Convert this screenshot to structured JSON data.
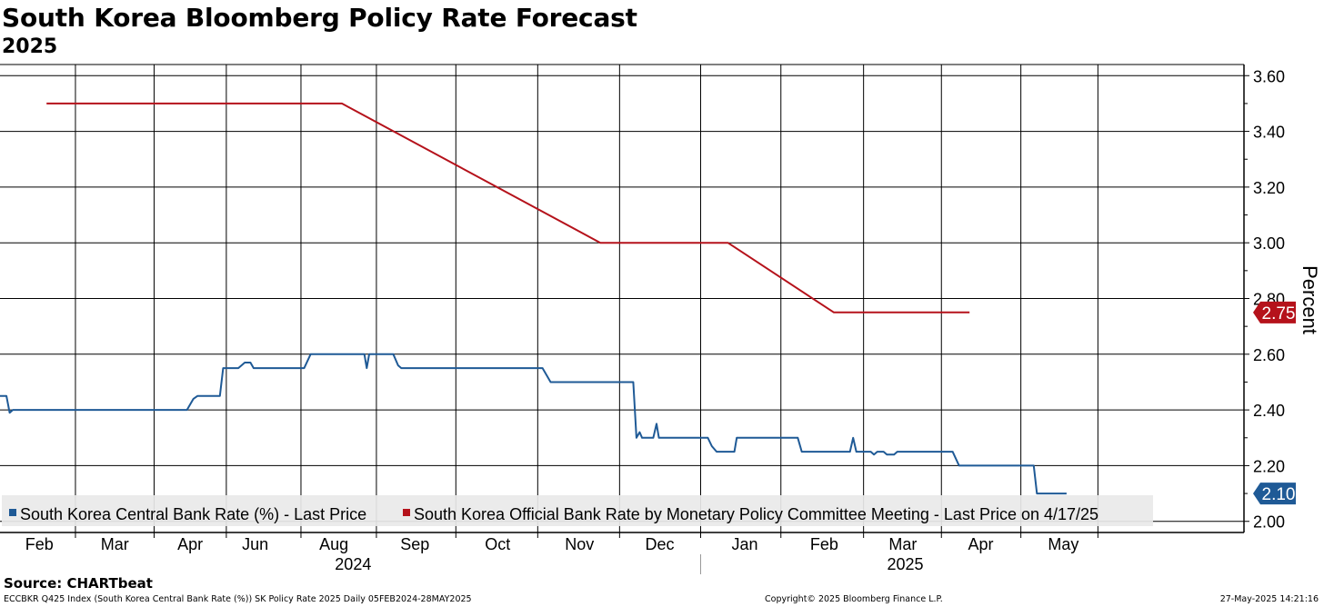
{
  "header": {
    "title": "South Korea Bloomberg Policy Rate Forecast",
    "subtitle": "2025"
  },
  "footer": {
    "source": "Source: CHARTbeat",
    "index_info": "ECCBKR Q425 Index (South Korea Central Bank Rate (%)) SK Policy Rate 2025  Daily 05FEB2024-28MAY2025",
    "copyright": "Copyright© 2025 Bloomberg Finance L.P.",
    "timestamp": "27-May-2025 14:21:16"
  },
  "colors": {
    "central_bank_series": "#1f5a96",
    "official_rate_series": "#b5121b",
    "grid": "#000000"
  },
  "chart_data": {
    "type": "line",
    "title": "South Korea Bloomberg Policy Rate Forecast",
    "subtitle": "2025",
    "xlabel": "",
    "ylabel": "Percent",
    "ylim": [
      1.96,
      3.64
    ],
    "yticks": [
      "2.00",
      "2.20",
      "2.40",
      "2.60",
      "2.80",
      "3.00",
      "3.20",
      "3.40",
      "3.60"
    ],
    "x_range_months": [
      -0.1,
      15.4
    ],
    "month_ticks": [
      {
        "label": "Feb",
        "m": 0.39
      },
      {
        "label": "Mar",
        "m": 1.33
      },
      {
        "label": "Apr",
        "m": 2.27
      },
      {
        "label": "Jun",
        "m": 3.08
      },
      {
        "label": "Aug",
        "m": 4.06
      },
      {
        "label": "Sep",
        "m": 5.07
      },
      {
        "label": "Oct",
        "m": 6.1
      },
      {
        "label": "Nov",
        "m": 7.12
      },
      {
        "label": "Dec",
        "m": 8.12
      },
      {
        "label": "Jan",
        "m": 9.18
      },
      {
        "label": "Feb",
        "m": 10.17
      },
      {
        "label": "Mar",
        "m": 11.15
      },
      {
        "label": "Apr",
        "m": 12.12
      },
      {
        "label": "May",
        "m": 13.15
      }
    ],
    "vertical_gridlines_m": [
      0.84,
      1.82,
      2.72,
      3.65,
      4.59,
      5.58,
      6.6,
      7.62,
      8.63,
      9.63,
      10.66,
      11.63,
      12.62,
      13.58
    ],
    "year_labels": [
      {
        "label": "2024",
        "m": 4.3
      },
      {
        "label": "2025",
        "m": 11.18
      }
    ],
    "year_divider_m": 8.63,
    "legend": {
      "placement": "bottom-left",
      "entries": [
        "South Korea Central Bank Rate (%) - Last Price",
        "South Korea Official Bank Rate by Monetary Policy Committee Meeting - Last Price on 4/17/25"
      ]
    },
    "last_values": [
      {
        "series": "South Korea Central Bank Rate (%)",
        "label": "2.10",
        "value": 2.1
      },
      {
        "series": "South Korea Official Bank Rate",
        "label": "2.75",
        "value": 2.75
      }
    ],
    "series": [
      {
        "name": "South Korea Official Bank Rate by Monetary Policy Committee Meeting - Last Price on 4/17/25",
        "points": [
          [
            0.48,
            3.5
          ],
          [
            4.16,
            3.5
          ],
          [
            7.38,
            3.0
          ],
          [
            8.97,
            3.0
          ],
          [
            10.29,
            2.75
          ],
          [
            11.98,
            2.75
          ]
        ]
      },
      {
        "name": "South Korea Central Bank Rate (%) - Last Price",
        "points": [
          [
            -0.1,
            2.45
          ],
          [
            -0.02,
            2.45
          ],
          [
            0.02,
            2.39
          ],
          [
            0.06,
            2.4
          ],
          [
            2.23,
            2.4
          ],
          [
            2.31,
            2.44
          ],
          [
            2.36,
            2.45
          ],
          [
            2.64,
            2.45
          ],
          [
            2.68,
            2.55
          ],
          [
            2.87,
            2.55
          ],
          [
            2.95,
            2.57
          ],
          [
            3.02,
            2.57
          ],
          [
            3.06,
            2.55
          ],
          [
            3.69,
            2.55
          ],
          [
            3.77,
            2.6
          ],
          [
            4.44,
            2.6
          ],
          [
            4.47,
            2.55
          ],
          [
            4.5,
            2.6
          ],
          [
            4.8,
            2.6
          ],
          [
            4.86,
            2.56
          ],
          [
            4.9,
            2.55
          ],
          [
            6.66,
            2.55
          ],
          [
            6.72,
            2.52
          ],
          [
            6.76,
            2.5
          ],
          [
            7.79,
            2.5
          ],
          [
            7.83,
            2.3
          ],
          [
            7.87,
            2.32
          ],
          [
            7.9,
            2.3
          ],
          [
            8.04,
            2.3
          ],
          [
            8.08,
            2.35
          ],
          [
            8.11,
            2.3
          ],
          [
            8.72,
            2.3
          ],
          [
            8.77,
            2.27
          ],
          [
            8.83,
            2.25
          ],
          [
            9.05,
            2.25
          ],
          [
            9.08,
            2.3
          ],
          [
            9.84,
            2.3
          ],
          [
            9.89,
            2.25
          ],
          [
            10.49,
            2.25
          ],
          [
            10.53,
            2.3
          ],
          [
            10.57,
            2.25
          ],
          [
            10.75,
            2.25
          ],
          [
            10.79,
            2.24
          ],
          [
            10.83,
            2.25
          ],
          [
            10.91,
            2.25
          ],
          [
            10.95,
            2.24
          ],
          [
            11.04,
            2.24
          ],
          [
            11.08,
            2.25
          ],
          [
            11.77,
            2.25
          ],
          [
            11.85,
            2.2
          ],
          [
            12.78,
            2.2
          ],
          [
            12.82,
            2.1
          ],
          [
            13.19,
            2.1
          ]
        ]
      }
    ]
  }
}
